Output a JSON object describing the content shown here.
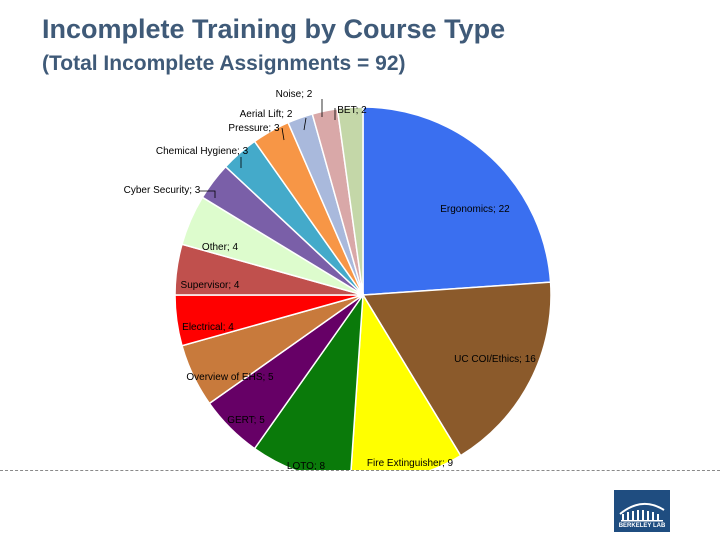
{
  "header": {
    "title": "Incomplete Training by Course Type",
    "subtitle": "(Total Incomplete Assignments = 92)"
  },
  "logo": {
    "text": "BERKELEY LAB"
  },
  "chart_data": {
    "type": "pie",
    "title": "Incomplete Training by Course Type",
    "subtitle": "(Total Incomplete Assignments = 92)",
    "total": 92,
    "slices": [
      {
        "name": "Ergonomics",
        "value": 22,
        "label": "Ergonomics; 22",
        "color": "#3a6ff0"
      },
      {
        "name": "UC COI/Ethics",
        "value": 16,
        "label": "UC COI/Ethics; 16",
        "color": "#8b5a2b"
      },
      {
        "name": "Fire Extinguisher",
        "value": 9,
        "label": "Fire Extinguisher; 9",
        "color": "#ffff00"
      },
      {
        "name": "LOTO",
        "value": 8,
        "label": "LOTO; 8",
        "color": "#0a7a0a"
      },
      {
        "name": "GERT",
        "value": 5,
        "label": "GERT; 5",
        "color": "#660066"
      },
      {
        "name": "Overview of EHS",
        "value": 5,
        "label": "Overview of EHS; 5",
        "color": "#c87a3c"
      },
      {
        "name": "Electrical",
        "value": 4,
        "label": "Electrical; 4",
        "color": "#ff0000"
      },
      {
        "name": "Supervisor",
        "value": 4,
        "label": "Supervisor; 4",
        "color": "#c0504d"
      },
      {
        "name": "Other",
        "value": 4,
        "label": "Other; 4",
        "color": "#ddfccd"
      },
      {
        "name": "Cyber Security",
        "value": 3,
        "label": "Cyber Security; 3",
        "color": "#7a5fa8"
      },
      {
        "name": "Chemical Hygiene",
        "value": 3,
        "label": "Chemical Hygiene; 3",
        "color": "#44aaca"
      },
      {
        "name": "Pressure",
        "value": 3,
        "label": "Pressure; 3",
        "color": "#f79646"
      },
      {
        "name": "Aerial Lift",
        "value": 2,
        "label": "Aerial Lift; 2",
        "color": "#a9b9dc"
      },
      {
        "name": "Noise",
        "value": 2,
        "label": "Noise; 2",
        "color": "#d9a8a8"
      },
      {
        "name": "BET",
        "value": 2,
        "label": "BET; 2",
        "color": "#c4d7a8"
      }
    ]
  }
}
